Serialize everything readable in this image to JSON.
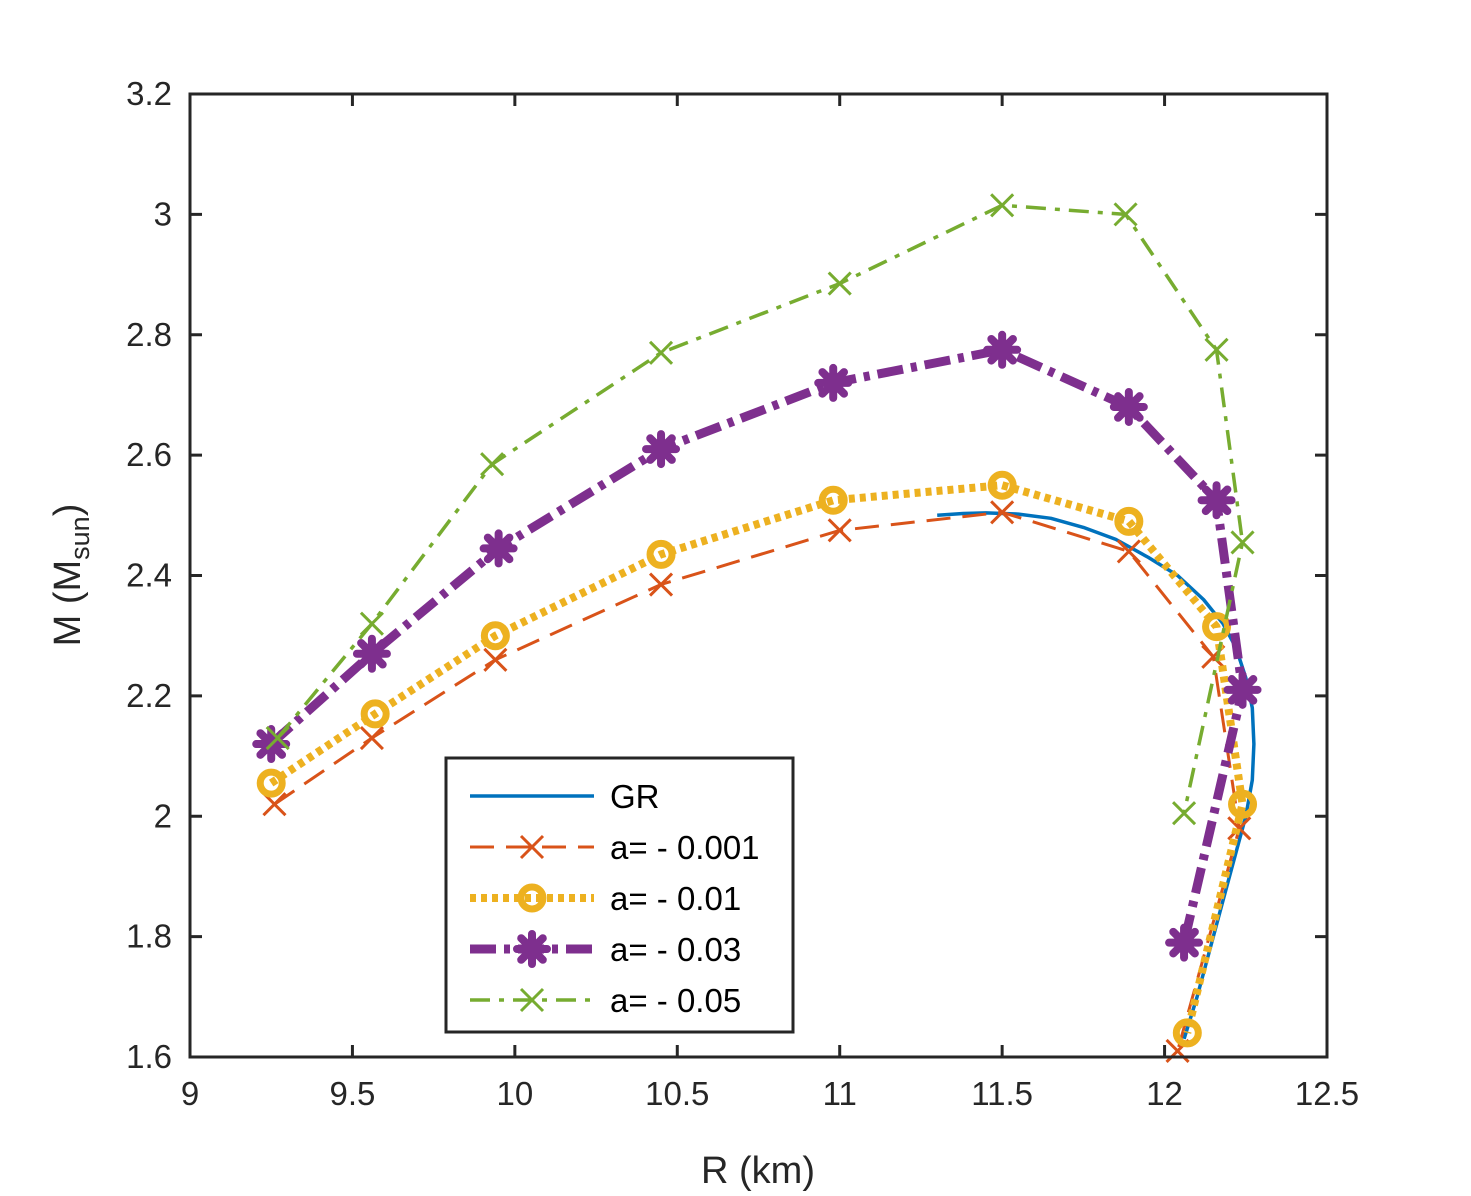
{
  "chart_data": {
    "type": "line",
    "title": "",
    "xlabel": "R (km)",
    "ylabel_main": "M (M",
    "ylabel_sub": "sun",
    "ylabel_close": ")",
    "xlim": [
      9,
      12.5
    ],
    "ylim": [
      1.6,
      3.2
    ],
    "xticks": [
      9,
      9.5,
      10,
      10.5,
      11,
      11.5,
      12,
      12.5
    ],
    "xtick_labels": [
      "9",
      "9.5",
      "10",
      "10.5",
      "11",
      "11.5",
      "12",
      "12.5"
    ],
    "yticks": [
      1.6,
      1.8,
      2.0,
      2.2,
      2.4,
      2.6,
      2.8,
      3.0,
      3.2
    ],
    "ytick_labels": [
      "1.6",
      "1.8",
      "2",
      "2.2",
      "2.4",
      "2.6",
      "2.8",
      "3",
      "3.2"
    ],
    "grid": false,
    "legend_position": "lower-center",
    "series": [
      {
        "name": "GR",
        "color": "#0072BD",
        "line": "solid",
        "marker": "none",
        "x": [
          12.06,
          12.1,
          12.14,
          12.18,
          12.22,
          12.25,
          12.27,
          12.275,
          12.27,
          12.25,
          12.22,
          12.18,
          12.12,
          12.04,
          11.95,
          11.85,
          11.75,
          11.65,
          11.55,
          11.45,
          11.38,
          11.3
        ],
        "y": [
          1.63,
          1.7,
          1.78,
          1.86,
          1.94,
          2.0,
          2.06,
          2.12,
          2.18,
          2.23,
          2.28,
          2.32,
          2.36,
          2.4,
          2.43,
          2.46,
          2.48,
          2.495,
          2.502,
          2.504,
          2.503,
          2.5
        ]
      },
      {
        "name": "a= - 0.001",
        "color": "#D95319",
        "line": "dashed",
        "marker": "x",
        "x": [
          9.26,
          9.56,
          9.94,
          10.45,
          11.0,
          11.5,
          11.89,
          12.15,
          12.23,
          12.04
        ],
        "y": [
          2.02,
          2.13,
          2.26,
          2.385,
          2.475,
          2.505,
          2.44,
          2.265,
          1.98,
          1.61
        ]
      },
      {
        "name": "a= - 0.01",
        "color": "#EDB120",
        "line": "dotted",
        "marker": "o",
        "x": [
          9.25,
          9.57,
          9.94,
          10.45,
          10.98,
          11.5,
          11.89,
          12.16,
          12.24,
          12.07
        ],
        "y": [
          2.055,
          2.17,
          2.3,
          2.435,
          2.525,
          2.55,
          2.49,
          2.315,
          2.02,
          1.64
        ]
      },
      {
        "name": "a= - 0.03",
        "color": "#7E2F8E",
        "line": "dashdot",
        "marker": "asterisk",
        "x": [
          9.25,
          9.56,
          9.95,
          10.45,
          10.98,
          11.5,
          11.89,
          12.16,
          12.24,
          12.06
        ],
        "y": [
          2.12,
          2.27,
          2.445,
          2.61,
          2.72,
          2.775,
          2.68,
          2.525,
          2.21,
          1.79
        ]
      },
      {
        "name": "a= - 0.05",
        "color": "#77AC30",
        "line": "dashdot-thin",
        "marker": "x",
        "x": [
          9.27,
          9.56,
          9.93,
          10.45,
          11.0,
          11.5,
          11.88,
          12.16,
          12.24,
          12.06
        ],
        "y": [
          2.13,
          2.32,
          2.585,
          2.77,
          2.885,
          3.015,
          3.0,
          2.775,
          2.455,
          2.005
        ]
      }
    ]
  }
}
